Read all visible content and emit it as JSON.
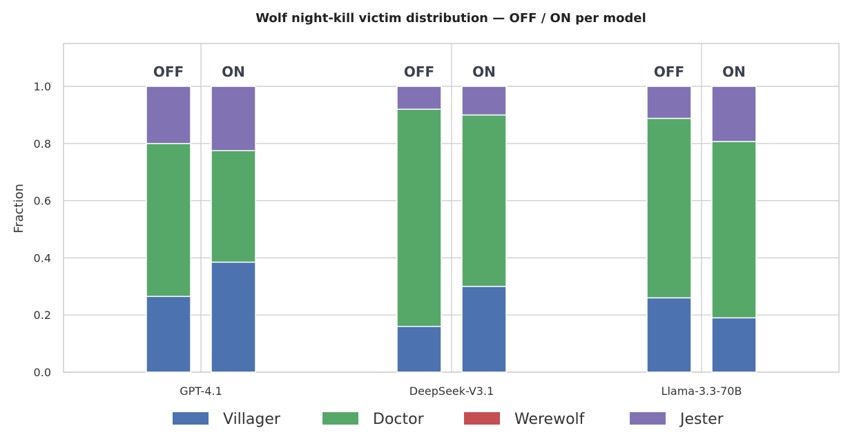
{
  "chart_data": {
    "type": "bar",
    "stacked": true,
    "title": "Wolf night-kill victim distribution — OFF / ON per model",
    "ylabel": "Fraction",
    "xlabel": "",
    "ylim": [
      0,
      1.15
    ],
    "yticks": [
      0.0,
      0.2,
      0.4,
      0.6,
      0.8,
      1.0
    ],
    "ytick_labels": [
      "0.0",
      "0.2",
      "0.4",
      "0.6",
      "0.8",
      "1.0"
    ],
    "grid": true,
    "legend_position": "bottom",
    "categories": [
      "GPT-4.1",
      "DeepSeek-V3.1",
      "Llama-3.3-70B"
    ],
    "conditions": [
      "OFF",
      "ON"
    ],
    "series": [
      {
        "name": "Villager",
        "color": "#4c72b0",
        "off": [
          0.265,
          0.16,
          0.26
        ],
        "on": [
          0.385,
          0.3,
          0.19
        ]
      },
      {
        "name": "Doctor",
        "color": "#55a868",
        "off": [
          0.535,
          0.76,
          0.628
        ],
        "on": [
          0.39,
          0.6,
          0.617
        ]
      },
      {
        "name": "Werewolf",
        "color": "#c44e52",
        "off": [
          0.0,
          0.0,
          0.0
        ],
        "on": [
          0.0,
          0.0,
          0.0
        ]
      },
      {
        "name": "Jester",
        "color": "#8172b3",
        "off": [
          0.2,
          0.08,
          0.112
        ],
        "on": [
          0.225,
          0.1,
          0.193
        ]
      }
    ]
  }
}
